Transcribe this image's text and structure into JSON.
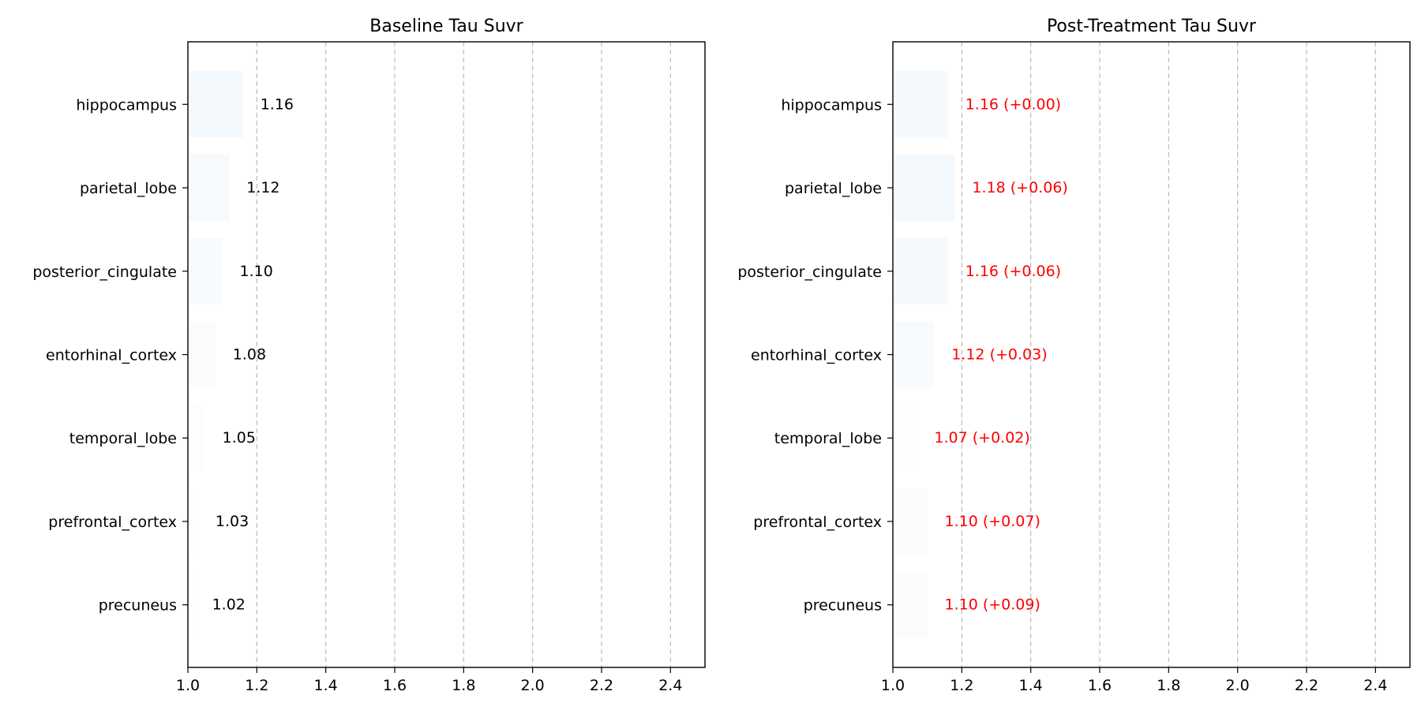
{
  "colors": {
    "baseline_text": "#000000",
    "post_text": "#ff0000",
    "bar_low": "#fdfefe",
    "bar_high": "#f3f8fc",
    "grid": "#c0c0c0"
  },
  "chart_data": [
    {
      "type": "bar",
      "orientation": "horizontal",
      "title": "Baseline Tau Suvr",
      "xlabel": "",
      "ylabel": "",
      "xlim": [
        1.0,
        2.5
      ],
      "x_ticks": [
        1.0,
        1.2,
        1.4,
        1.6,
        1.8,
        2.0,
        2.2,
        2.4
      ],
      "x_tick_labels": [
        "1.0",
        "1.2",
        "1.4",
        "1.6",
        "1.8",
        "2.0",
        "2.2",
        "2.4"
      ],
      "grid": "vertical dashed",
      "categories": [
        "hippocampus",
        "parietal_lobe",
        "posterior_cingulate",
        "entorhinal_cortex",
        "temporal_lobe",
        "prefrontal_cortex",
        "precuneus"
      ],
      "values": [
        1.16,
        1.12,
        1.1,
        1.08,
        1.05,
        1.03,
        1.02
      ],
      "value_labels": [
        "1.16",
        "1.12",
        "1.10",
        "1.08",
        "1.05",
        "1.03",
        "1.02"
      ]
    },
    {
      "type": "bar",
      "orientation": "horizontal",
      "title": "Post-Treatment Tau Suvr",
      "xlabel": "",
      "ylabel": "",
      "xlim": [
        1.0,
        2.5
      ],
      "x_ticks": [
        1.0,
        1.2,
        1.4,
        1.6,
        1.8,
        2.0,
        2.2,
        2.4
      ],
      "x_tick_labels": [
        "1.0",
        "1.2",
        "1.4",
        "1.6",
        "1.8",
        "2.0",
        "2.2",
        "2.4"
      ],
      "grid": "vertical dashed",
      "categories": [
        "hippocampus",
        "parietal_lobe",
        "posterior_cingulate",
        "entorhinal_cortex",
        "temporal_lobe",
        "prefrontal_cortex",
        "precuneus"
      ],
      "values": [
        1.16,
        1.18,
        1.16,
        1.12,
        1.07,
        1.1,
        1.1
      ],
      "changes": [
        0.0,
        0.06,
        0.06,
        0.03,
        0.02,
        0.07,
        0.09
      ],
      "value_labels": [
        "1.16 (+0.00)",
        "1.18 (+0.06)",
        "1.16 (+0.06)",
        "1.12 (+0.03)",
        "1.07 (+0.02)",
        "1.10 (+0.07)",
        "1.10 (+0.09)"
      ]
    }
  ]
}
